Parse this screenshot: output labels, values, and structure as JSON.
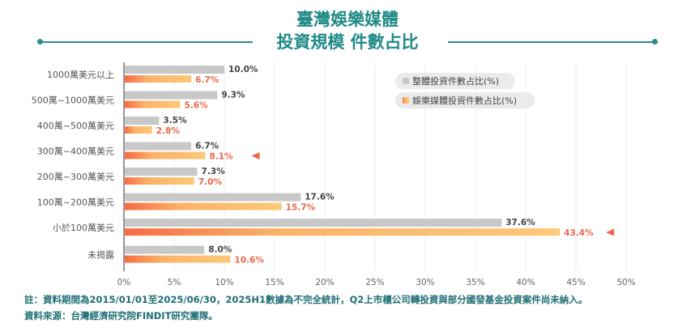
{
  "header": {
    "title_line1": "臺灣娛樂媒體",
    "title_line2": "投資規模 件數占比"
  },
  "chart_data": {
    "type": "bar",
    "orientation": "horizontal",
    "title": "臺灣娛樂媒體 投資規模 件數占比",
    "categories": [
      "1000萬美元以上",
      "500萬~1000萬美元",
      "400萬~500萬美元",
      "300萬~400萬美元",
      "200萬~300萬美元",
      "100萬~200萬美元",
      "小於100萬美元",
      "未揭露"
    ],
    "series": [
      {
        "name": "整體投資件數占比(%)",
        "color": "#c8c8c8",
        "values": [
          10.0,
          9.3,
          3.5,
          6.7,
          7.3,
          17.6,
          37.6,
          8.0
        ]
      },
      {
        "name": "娛樂媒體投資件數占比(%)",
        "color": "#f79a55",
        "values": [
          6.7,
          5.6,
          2.8,
          8.1,
          7.0,
          15.7,
          43.4,
          10.6
        ]
      }
    ],
    "highlighted": [
      "300萬~400萬美元",
      "小於100萬美元"
    ],
    "xlim": [
      0,
      50
    ],
    "xticks": [
      "0%",
      "5%",
      "10%",
      "15%",
      "20%",
      "25%",
      "30%",
      "35%",
      "40%",
      "45%",
      "50%"
    ],
    "grid": true,
    "legend_position": "top-right",
    "label_color": "#e8684a"
  },
  "notes": {
    "note": "註：資料期間為2015/01/01至2025/06/30，2025H1數據為不完全統計，Q2上市櫃公司轉投資與部分國發基金投資案件尚未納入。",
    "source": "資料來源：台灣經濟研究院FINDIT研究團隊。"
  }
}
